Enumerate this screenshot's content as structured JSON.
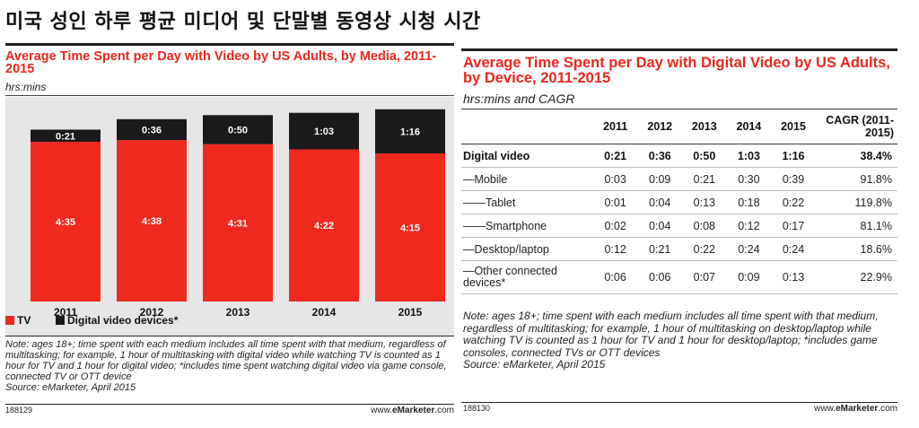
{
  "page_title": "미국 성인 하루 평균 미디어 및 단말별 동영상 시청 시간",
  "left_chart": {
    "title": "Average Time Spent per Day with Video by US Adults, by Media, 2011-2015",
    "units": "hrs:mins",
    "note": "Note: ages 18+; time spent with each medium includes all time spent with that medium, regardless of multitasking; for example, 1 hour of multitasking with digital video while watching TV is counted as 1 hour for TV and 1 hour for digital video; *includes time spent watching digital video via game console, connected TV or OTT device",
    "source": "Source: eMarketer, April 2015",
    "chart_id": "188129",
    "url_prefix": "www.",
    "url_brand": "eMarketer",
    "url_suffix": ".com"
  },
  "chart_data": {
    "type": "bar",
    "stacked": true,
    "categories": [
      "2011",
      "2012",
      "2013",
      "2014",
      "2015"
    ],
    "series": [
      {
        "name": "TV",
        "color": "#ee2a1e",
        "values_minutes": [
          275,
          278,
          271,
          262,
          255
        ],
        "labels": [
          "4:35",
          "4:38",
          "4:31",
          "4:22",
          "4:15"
        ]
      },
      {
        "name": "Digital video devices*",
        "color": "#1a1a1a",
        "values_minutes": [
          21,
          36,
          50,
          63,
          76
        ],
        "labels": [
          "0:21",
          "0:36",
          "0:50",
          "1:03",
          "1:16"
        ]
      }
    ],
    "ylim_minutes": [
      0,
      340
    ],
    "legend": "bottom-left"
  },
  "right_chart": {
    "title": "Average Time Spent per Day with Digital Video by US Adults, by Device, 2011-2015",
    "units": "hrs:mins and CAGR",
    "columns": [
      "2011",
      "2012",
      "2013",
      "2014",
      "2015",
      "CAGR (2011-2015)"
    ],
    "rows": [
      {
        "label": "Digital video",
        "values": [
          "0:21",
          "0:36",
          "0:50",
          "1:03",
          "1:16",
          "38.4%"
        ],
        "bold": true
      },
      {
        "label": "—Mobile",
        "values": [
          "0:03",
          "0:09",
          "0:21",
          "0:30",
          "0:39",
          "91.8%"
        ]
      },
      {
        "label": "——Tablet",
        "values": [
          "0:01",
          "0:04",
          "0:13",
          "0:18",
          "0:22",
          "119.8%"
        ]
      },
      {
        "label": "——Smartphone",
        "values": [
          "0:02",
          "0:04",
          "0:08",
          "0:12",
          "0:17",
          "81.1%"
        ]
      },
      {
        "label": "—Desktop/laptop",
        "values": [
          "0:12",
          "0:21",
          "0:22",
          "0:24",
          "0:24",
          "18.6%"
        ]
      },
      {
        "label": "—Other connected devices*",
        "values": [
          "0:06",
          "0:06",
          "0:07",
          "0:09",
          "0:13",
          "22.9%"
        ]
      }
    ],
    "note": "Note: ages 18+; time spent with each medium includes all time spent with that medium, regardless of multitasking; for example, 1 hour of multitasking on desktop/laptop while watching TV is counted as 1 hour for TV and 1 hour for desktop/laptop; *includes game consoles, connected TVs or OTT devices",
    "source": "Source: eMarketer, April 2015",
    "chart_id": "188130",
    "url_prefix": "www.",
    "url_brand": "eMarketer",
    "url_suffix": ".com"
  }
}
